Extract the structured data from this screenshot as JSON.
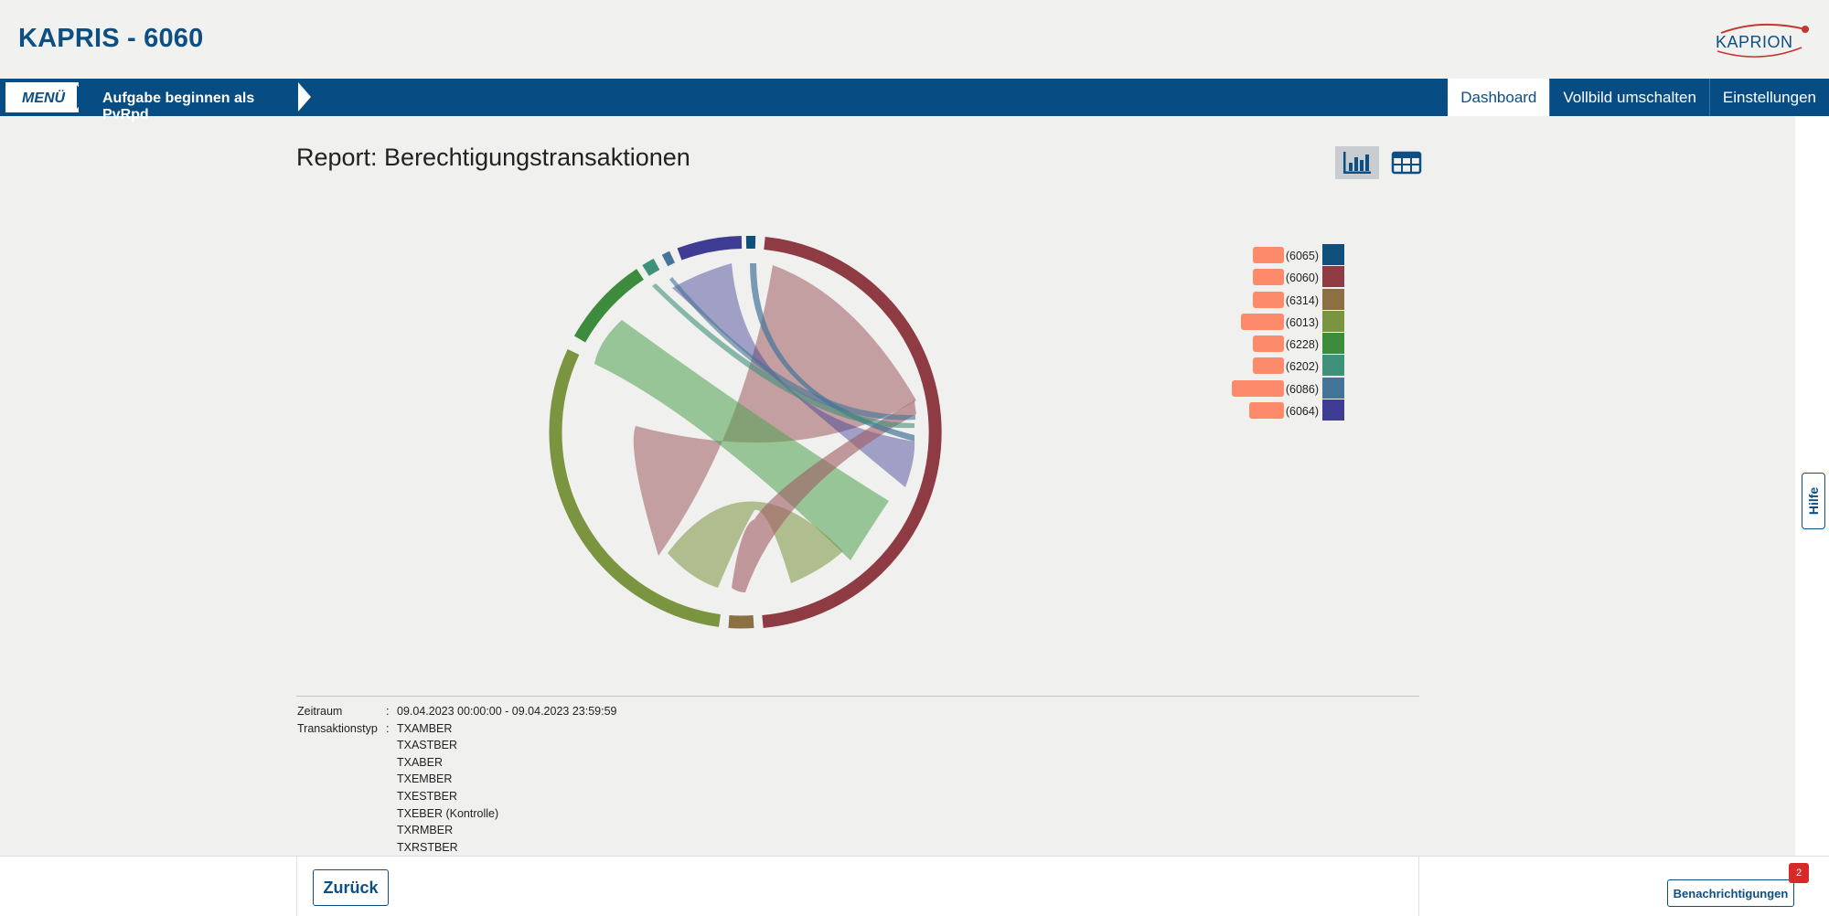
{
  "app": {
    "title": "KAPRIS - 6060",
    "logo_text": "KAPRION"
  },
  "nav": {
    "menu_label": "MENÜ",
    "task_label": "Aufgabe beginnen als PvRpd",
    "buttons": [
      "Dashboard",
      "Vollbild umschalten",
      "Einstellungen"
    ],
    "active": "Dashboard"
  },
  "report": {
    "title": "Report: Berechtigungstransaktionen",
    "view_toggle": {
      "chart_icon": "bar-chart-icon",
      "table_icon": "table-grid-icon",
      "active": "chart"
    }
  },
  "chart_data": {
    "type": "chord",
    "legend": [
      {
        "label": "(6065)",
        "color": "#0f4f7c",
        "bar": 0.6
      },
      {
        "label": "(6060)",
        "color": "#8e3b44",
        "bar": 0.6
      },
      {
        "label": "(6314)",
        "color": "#8a7042",
        "bar": 0.6
      },
      {
        "label": "(6013)",
        "color": "#7a943f",
        "bar": 0.82
      },
      {
        "label": "(6228)",
        "color": "#3d8b3d",
        "bar": 0.6
      },
      {
        "label": "(6202)",
        "color": "#3f917a",
        "bar": 0.6
      },
      {
        "label": "(6086)",
        "color": "#447598",
        "bar": 1.0
      },
      {
        "label": "(6064)",
        "color": "#3e3c93",
        "bar": 0.67
      }
    ]
  },
  "filters": [
    {
      "key": "Zeitraum",
      "values": [
        "09.04.2023 00:00:00 - 09.04.2023 23:59:59"
      ]
    },
    {
      "key": "Transaktionstyp",
      "values": [
        "TXAMBER",
        "TXASTBER",
        "TXABER",
        "TXEMBER",
        "TXESTBER",
        "TXEBER (Kontrolle)",
        "TXRMBER",
        "TXRSTBER"
      ]
    }
  ],
  "footer": {
    "back_label": "Zurück",
    "notifications_label": "Benachrichtigungen",
    "notifications_count": "2"
  },
  "sidebar": {
    "help_label": "Hilfe"
  }
}
